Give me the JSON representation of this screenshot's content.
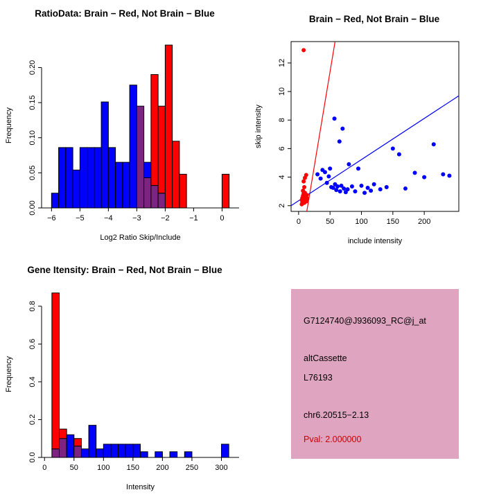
{
  "colors": {
    "red": "#ff0000",
    "blue": "#0000ff",
    "purple": "#7d2381",
    "axis": "#000000",
    "pval_red": "#cc0000"
  },
  "chart_data": [
    {
      "type": "bar",
      "title": "RatioData: Brain − Red, Not Brain − Blue",
      "xlabel": "Log2 Ratio Skip/Include",
      "ylabel": "Frequency",
      "xlim": [
        -6.35,
        0.6
      ],
      "ylim": [
        0,
        0.235
      ],
      "bin_width": 0.25,
      "grid": false,
      "xticks": [
        {
          "v": -6,
          "l": "−6"
        },
        {
          "v": -5,
          "l": "−5"
        },
        {
          "v": -4,
          "l": "−4"
        },
        {
          "v": -3,
          "l": "−3"
        },
        {
          "v": -2,
          "l": "−2"
        },
        {
          "v": -1,
          "l": "−1"
        },
        {
          "v": 0,
          "l": "0"
        }
      ],
      "yticks": [
        {
          "v": 0,
          "l": "0.00"
        },
        {
          "v": 0.05,
          "l": "0.05"
        },
        {
          "v": 0.1,
          "l": "0.10"
        },
        {
          "v": 0.15,
          "l": "0.15"
        },
        {
          "v": 0.2,
          "l": "0.20"
        }
      ],
      "bars": [
        {
          "x": -6.0,
          "s": [
            {
              "c": "blue",
              "h": 0.021
            }
          ]
        },
        {
          "x": -5.75,
          "s": [
            {
              "c": "blue",
              "h": 0.086
            }
          ]
        },
        {
          "x": -5.5,
          "s": [
            {
              "c": "blue",
              "h": 0.086
            }
          ]
        },
        {
          "x": -5.25,
          "s": [
            {
              "c": "blue",
              "h": 0.054
            }
          ]
        },
        {
          "x": -5.0,
          "s": [
            {
              "c": "blue",
              "h": 0.086
            }
          ]
        },
        {
          "x": -4.75,
          "s": [
            {
              "c": "blue",
              "h": 0.086
            }
          ]
        },
        {
          "x": -4.5,
          "s": [
            {
              "c": "blue",
              "h": 0.086
            }
          ]
        },
        {
          "x": -4.25,
          "s": [
            {
              "c": "blue",
              "h": 0.151
            }
          ]
        },
        {
          "x": -4.0,
          "s": [
            {
              "c": "blue",
              "h": 0.086
            }
          ]
        },
        {
          "x": -3.75,
          "s": [
            {
              "c": "blue",
              "h": 0.065
            }
          ]
        },
        {
          "x": -3.5,
          "s": [
            {
              "c": "blue",
              "h": 0.065
            }
          ]
        },
        {
          "x": -3.25,
          "s": [
            {
              "c": "blue",
              "h": 0.175
            }
          ]
        },
        {
          "x": -3.0,
          "s": [
            {
              "c": "purple",
              "h": 0.145
            }
          ]
        },
        {
          "x": -2.75,
          "s": [
            {
              "c": "purple",
              "h": 0.043
            },
            {
              "c": "blue",
              "h": 0.022
            }
          ]
        },
        {
          "x": -2.5,
          "s": [
            {
              "c": "purple",
              "h": 0.032
            },
            {
              "c": "red",
              "h": 0.158
            }
          ]
        },
        {
          "x": -2.25,
          "s": [
            {
              "c": "purple",
              "h": 0.021
            },
            {
              "c": "red",
              "h": 0.124
            }
          ]
        },
        {
          "x": -2.0,
          "s": [
            {
              "c": "red",
              "h": 0.232
            }
          ]
        },
        {
          "x": -1.75,
          "s": [
            {
              "c": "red",
              "h": 0.095
            }
          ]
        },
        {
          "x": -1.5,
          "s": [
            {
              "c": "red",
              "h": 0.048
            }
          ]
        },
        {
          "x": 0.0,
          "s": [
            {
              "c": "red",
              "h": 0.048
            }
          ]
        }
      ]
    },
    {
      "type": "scatter",
      "title": "Brain − Red, Not Brain − Blue",
      "xlabel": "include intensity",
      "ylabel": "skip intensity",
      "xlim": [
        -12,
        255
      ],
      "ylim": [
        1.6,
        13.5
      ],
      "grid": false,
      "xticks": [
        {
          "v": 0,
          "l": "0"
        },
        {
          "v": 50,
          "l": "50"
        },
        {
          "v": 100,
          "l": "100"
        },
        {
          "v": 150,
          "l": "150"
        },
        {
          "v": 200,
          "l": "200"
        }
      ],
      "yticks": [
        {
          "v": 2,
          "l": "2"
        },
        {
          "v": 4,
          "l": "4"
        },
        {
          "v": 6,
          "l": "6"
        },
        {
          "v": 8,
          "l": "8"
        },
        {
          "v": 10,
          "l": "10"
        },
        {
          "v": 12,
          "l": "12"
        }
      ],
      "series": [
        {
          "name": "brain",
          "color": "red",
          "points": [
            [
              8,
              12.9
            ],
            [
              5,
              2.1
            ],
            [
              6,
              2.25
            ],
            [
              7,
              2.2
            ],
            [
              8,
              2.35
            ],
            [
              9,
              2.2
            ],
            [
              10,
              2.45
            ],
            [
              6,
              2.55
            ],
            [
              7,
              2.7
            ],
            [
              8,
              2.85
            ],
            [
              9,
              2.6
            ],
            [
              11,
              2.5
            ],
            [
              12,
              2.3
            ],
            [
              7,
              3.05
            ],
            [
              9,
              3.3
            ],
            [
              8,
              3.7
            ],
            [
              10,
              3.95
            ],
            [
              12,
              4.15
            ],
            [
              14,
              2.5
            ],
            [
              5,
              2.4
            ],
            [
              13,
              2.75
            ],
            [
              10,
              2.9
            ]
          ]
        },
        {
          "name": "not-brain",
          "color": "blue",
          "points": [
            [
              30,
              4.2
            ],
            [
              35,
              3.9
            ],
            [
              38,
              4.5
            ],
            [
              42,
              4.35
            ],
            [
              45,
              3.6
            ],
            [
              48,
              4.05
            ],
            [
              50,
              4.6
            ],
            [
              52,
              3.3
            ],
            [
              55,
              3.25
            ],
            [
              57,
              8.1
            ],
            [
              58,
              3.5
            ],
            [
              60,
              3.1
            ],
            [
              62,
              3.35
            ],
            [
              65,
              6.5
            ],
            [
              66,
              3.0
            ],
            [
              68,
              3.4
            ],
            [
              70,
              7.4
            ],
            [
              72,
              3.2
            ],
            [
              75,
              2.95
            ],
            [
              78,
              3.15
            ],
            [
              80,
              4.9
            ],
            [
              85,
              3.35
            ],
            [
              90,
              3.0
            ],
            [
              95,
              4.6
            ],
            [
              100,
              3.4
            ],
            [
              105,
              2.9
            ],
            [
              110,
              3.25
            ],
            [
              115,
              3.05
            ],
            [
              120,
              3.5
            ],
            [
              130,
              3.15
            ],
            [
              140,
              3.3
            ],
            [
              150,
              6.0
            ],
            [
              160,
              5.6
            ],
            [
              170,
              3.2
            ],
            [
              185,
              4.3
            ],
            [
              200,
              4.0
            ],
            [
              215,
              6.3
            ],
            [
              230,
              4.2
            ],
            [
              240,
              4.1
            ]
          ]
        }
      ],
      "lines": [
        {
          "c": "red",
          "x1": 13,
          "y1": 1.6,
          "x2": 58,
          "y2": 13.5
        },
        {
          "c": "blue",
          "x1": -12,
          "y1": 2.0,
          "x2": 255,
          "y2": 9.7
        }
      ]
    },
    {
      "type": "bar",
      "title": "Gene Itensity: Brain − Red, Not Brain − Blue",
      "xlabel": "Intensity",
      "ylabel": "Frequency",
      "xlim": [
        -5,
        330
      ],
      "ylim": [
        0,
        0.88
      ],
      "bin_width": 12.5,
      "grid": false,
      "xticks": [
        {
          "v": 0,
          "l": "0"
        },
        {
          "v": 50,
          "l": "50"
        },
        {
          "v": 100,
          "l": "100"
        },
        {
          "v": 150,
          "l": "150"
        },
        {
          "v": 200,
          "l": "200"
        },
        {
          "v": 250,
          "l": "250"
        },
        {
          "v": 300,
          "l": "300"
        }
      ],
      "yticks": [
        {
          "v": 0,
          "l": "0.0"
        },
        {
          "v": 0.2,
          "l": "0.2"
        },
        {
          "v": 0.4,
          "l": "0.4"
        },
        {
          "v": 0.6,
          "l": "0.6"
        },
        {
          "v": 0.8,
          "l": "0.8"
        }
      ],
      "bars": [
        {
          "x": 12.5,
          "s": [
            {
              "c": "purple",
              "h": 0.045
            },
            {
              "c": "red",
              "h": 0.825
            }
          ]
        },
        {
          "x": 25,
          "s": [
            {
              "c": "purple",
              "h": 0.1
            },
            {
              "c": "red",
              "h": 0.05
            }
          ]
        },
        {
          "x": 37.5,
          "s": [
            {
              "c": "blue",
              "h": 0.12
            }
          ]
        },
        {
          "x": 50,
          "s": [
            {
              "c": "purple",
              "h": 0.06
            },
            {
              "c": "red",
              "h": 0.04
            }
          ]
        },
        {
          "x": 62.5,
          "s": [
            {
              "c": "blue",
              "h": 0.045
            }
          ]
        },
        {
          "x": 75,
          "s": [
            {
              "c": "blue",
              "h": 0.17
            }
          ]
        },
        {
          "x": 87.5,
          "s": [
            {
              "c": "blue",
              "h": 0.045
            }
          ]
        },
        {
          "x": 100,
          "s": [
            {
              "c": "blue",
              "h": 0.07
            }
          ]
        },
        {
          "x": 112.5,
          "s": [
            {
              "c": "blue",
              "h": 0.07
            }
          ]
        },
        {
          "x": 125,
          "s": [
            {
              "c": "blue",
              "h": 0.07
            }
          ]
        },
        {
          "x": 137.5,
          "s": [
            {
              "c": "blue",
              "h": 0.07
            }
          ]
        },
        {
          "x": 150,
          "s": [
            {
              "c": "blue",
              "h": 0.07
            }
          ]
        },
        {
          "x": 162.5,
          "s": [
            {
              "c": "blue",
              "h": 0.03
            }
          ]
        },
        {
          "x": 187.5,
          "s": [
            {
              "c": "blue",
              "h": 0.03
            }
          ]
        },
        {
          "x": 212.5,
          "s": [
            {
              "c": "blue",
              "h": 0.03
            }
          ]
        },
        {
          "x": 237.5,
          "s": [
            {
              "c": "blue",
              "h": 0.03
            }
          ]
        },
        {
          "x": 300,
          "s": [
            {
              "c": "blue",
              "h": 0.07
            }
          ]
        }
      ]
    }
  ],
  "info_box": {
    "bg": "#dfa5c0",
    "lines": [
      {
        "text": "G7124740@J936093_RC@j_at",
        "color": "#000000"
      },
      {
        "text": "altCassette",
        "color": "#000000"
      },
      {
        "text": "L76193",
        "color": "#000000"
      },
      {
        "text": "chr6.20515−2.13",
        "color": "#000000"
      },
      {
        "text": "Pval: 2.000000",
        "color": "#cc0000"
      }
    ]
  }
}
